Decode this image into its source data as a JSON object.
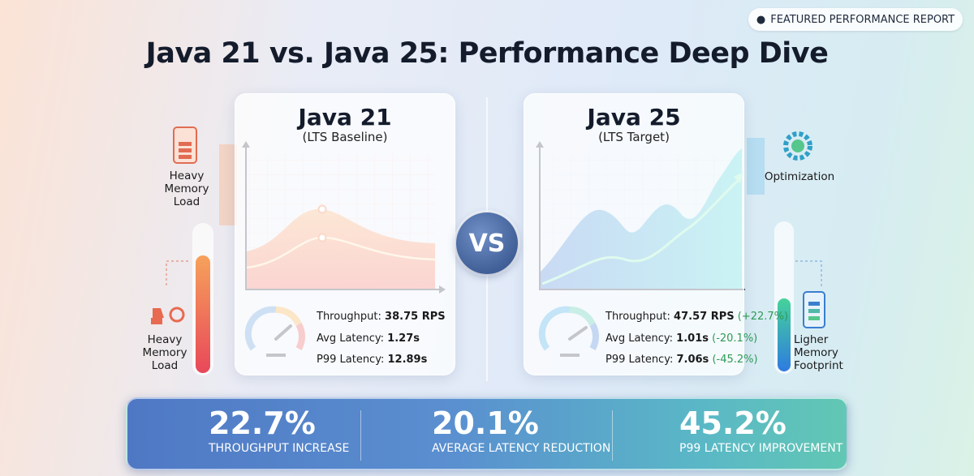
{
  "badge": "FEATURED PERFORMANCE REPORT",
  "title": "Java 21 vs. Java 25: Performance Deep Dive",
  "vs": "VS",
  "left_side": {
    "top_label": "Heavy Memory Load",
    "bottom_label": "Heavy Memory Load"
  },
  "right_side": {
    "top_label": "Optimization",
    "bottom_label": "Ligher Memory Footprint"
  },
  "cards": [
    {
      "title": "Java 21",
      "subtitle": "(LTS Baseline)",
      "metrics": [
        {
          "label": "Throughput:",
          "value": "38.75 RPS"
        },
        {
          "label": "Avg Latency:",
          "value": "1.27s"
        },
        {
          "label": "P99 Latency:",
          "value": "12.89s"
        }
      ]
    },
    {
      "title": "Java 25",
      "subtitle": "(LTS Target)",
      "metrics": [
        {
          "label": "Throughput:",
          "value": "47.57 RPS",
          "change": "(+22.7%)"
        },
        {
          "label": "Avg Latency:",
          "value": "1.01s",
          "change": "(-20.1%)"
        },
        {
          "label": "P99 Latency:",
          "value": "7.06s",
          "change": "(-45.2%)"
        }
      ]
    }
  ],
  "summary": [
    {
      "value": "22.7%",
      "label": "THROUGHPUT INCREASE"
    },
    {
      "value": "20.1%",
      "label": "AVERAGE LATENCY REDUCTION"
    },
    {
      "value": "45.2%",
      "label": "P99 LATENCY IMPROVEMENT"
    }
  ]
}
